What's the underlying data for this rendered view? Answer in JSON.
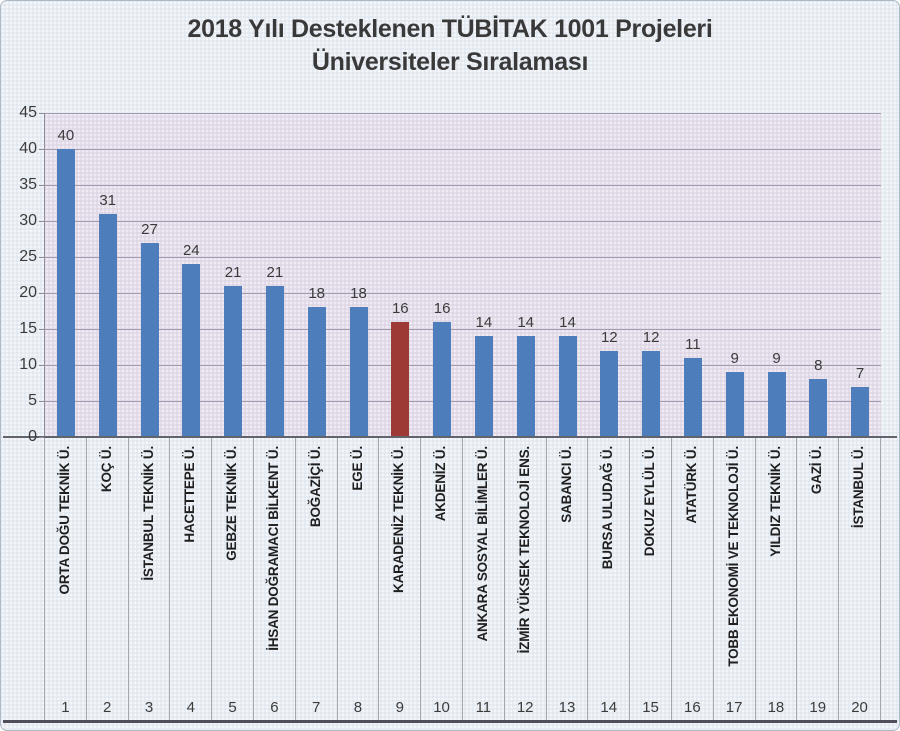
{
  "chart_data": {
    "type": "bar",
    "title": "2018 Yılı Desteklenen TÜBİTAK 1001 Projeleri",
    "subtitle": "Üniversiteler Sıralaması",
    "categories": [
      "ORTA DOĞU TEKNİK Ü.",
      "KOÇ Ü.",
      "İSTANBUL TEKNİK Ü.",
      "HACETTEPE Ü.",
      "GEBZE TEKNİK Ü.",
      "İHSAN DOĞRAMACI BİLKENT Ü.",
      "BOĞAZİÇİ Ü.",
      "EGE Ü.",
      "KARADENİZ TEKNİK Ü.",
      "AKDENİZ Ü.",
      "ANKARA SOSYAL BİLİMLER Ü.",
      "İZMİR YÜKSEK TEKNOLOJİ ENS.",
      "SABANCI Ü.",
      "BURSA ULUDAĞ Ü.",
      "DOKUZ EYLÜL Ü.",
      "ATATÜRK Ü.",
      "TOBB EKONOMİ VE TEKNOLOJİ Ü.",
      "YILDIZ TEKNİK Ü.",
      "GAZİ Ü.",
      "İSTANBUL Ü."
    ],
    "ranks": [
      1,
      2,
      3,
      4,
      5,
      6,
      7,
      8,
      9,
      10,
      11,
      12,
      13,
      14,
      15,
      16,
      17,
      18,
      19,
      20
    ],
    "values": [
      40,
      31,
      27,
      24,
      21,
      21,
      18,
      18,
      16,
      16,
      14,
      14,
      14,
      12,
      12,
      11,
      9,
      9,
      8,
      7
    ],
    "highlighted_index": 8,
    "highlighted_category": "KARADENİZ TEKNİK Ü.",
    "yticks": [
      0,
      5,
      10,
      15,
      20,
      25,
      30,
      35,
      40,
      45
    ],
    "ylim": [
      0,
      45
    ],
    "grid": true,
    "legend": "none",
    "colors": {
      "bar": "#4d7ebb",
      "highlight_bar": "#9e3a35",
      "plot_bg": "#e3dce9",
      "page_bg": "#e8edf4",
      "gridline": "#a19bad",
      "text": "#3b3b3b"
    }
  }
}
